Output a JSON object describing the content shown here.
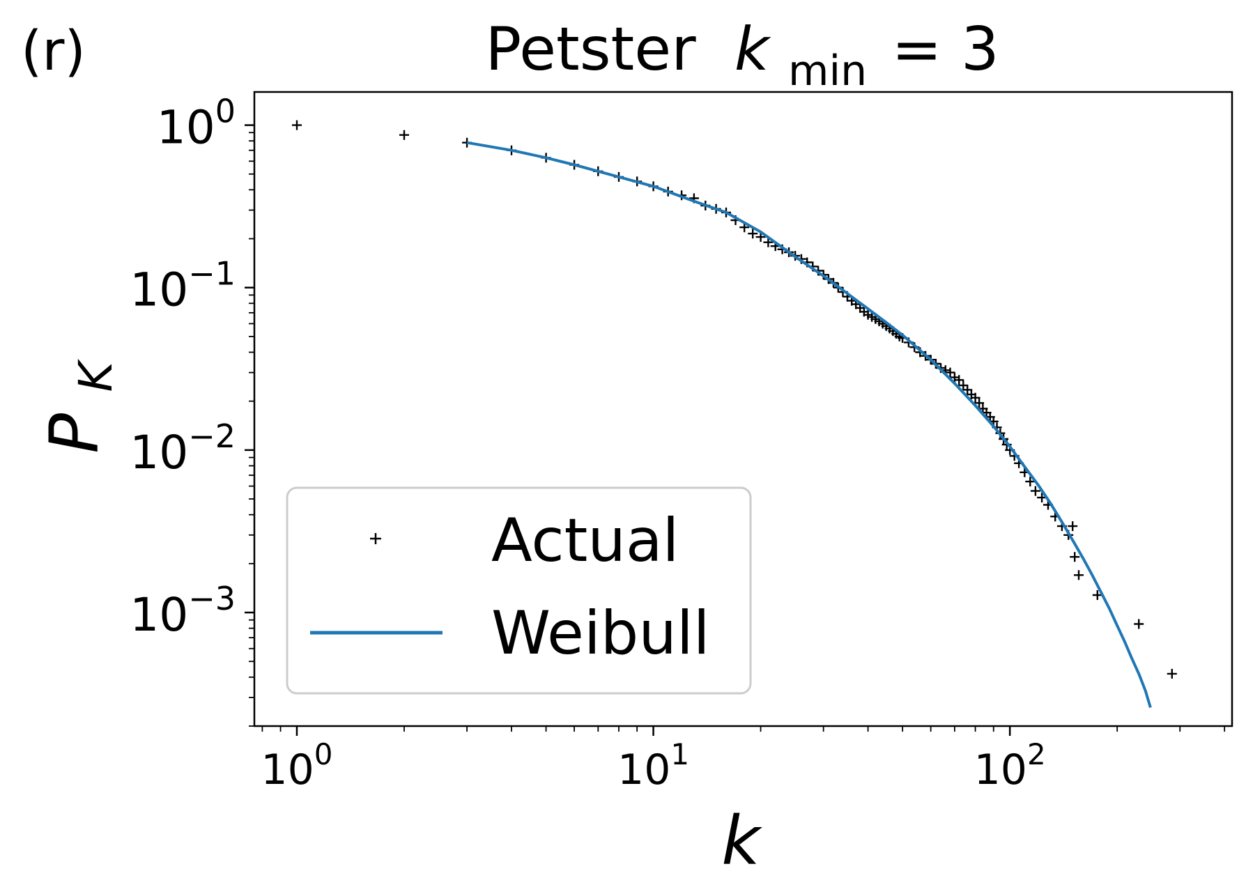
{
  "panel_label": "(r)",
  "chart_data": {
    "type": "scatter",
    "title": {
      "prefix": "Petster",
      "var": "k",
      "subscript": "min",
      "suffix": "= 3"
    },
    "xlabel": "k",
    "ylabel": {
      "base": "P",
      "sub": "K"
    },
    "xscale": "log",
    "yscale": "log",
    "xlim": [
      0.76,
      420
    ],
    "ylim": [
      0.0002,
      1.6
    ],
    "xticks": [
      {
        "value": 1,
        "base": "10",
        "exp": "0"
      },
      {
        "value": 10,
        "base": "10",
        "exp": "1"
      },
      {
        "value": 100,
        "base": "10",
        "exp": "2"
      }
    ],
    "yticks": [
      {
        "value": 1,
        "base": "10",
        "exp": "0"
      },
      {
        "value": 0.1,
        "base": "10",
        "exp": "−1"
      },
      {
        "value": 0.01,
        "base": "10",
        "exp": "−2"
      },
      {
        "value": 0.001,
        "base": "10",
        "exp": "−3"
      }
    ],
    "legend_position": "lower-left",
    "series": [
      {
        "name": "Actual",
        "kind": "markers",
        "color": "#000000",
        "marker": "plus",
        "x": [
          1,
          2,
          3,
          4,
          5,
          6,
          7,
          8,
          9,
          10,
          11,
          12,
          13,
          14,
          15,
          16,
          17,
          18,
          19,
          20,
          21,
          22,
          23,
          24,
          25,
          26,
          27,
          28,
          29,
          30,
          31,
          32,
          33,
          34,
          35,
          36,
          37,
          38,
          39,
          40,
          41,
          42,
          43,
          44,
          45,
          46,
          47,
          48,
          49,
          50,
          52,
          54,
          56,
          58,
          60,
          62,
          64,
          66,
          68,
          70,
          72,
          74,
          76,
          78,
          80,
          82,
          84,
          86,
          88,
          90,
          92,
          94,
          96,
          98,
          100,
          103,
          106,
          110,
          114,
          118,
          123,
          128,
          134,
          140,
          146,
          150,
          152,
          156,
          176,
          230,
          285
        ],
        "y": [
          1.0,
          0.87,
          0.78,
          0.7,
          0.63,
          0.57,
          0.52,
          0.48,
          0.45,
          0.42,
          0.39,
          0.37,
          0.355,
          0.32,
          0.305,
          0.29,
          0.26,
          0.235,
          0.215,
          0.205,
          0.19,
          0.18,
          0.172,
          0.165,
          0.157,
          0.15,
          0.143,
          0.135,
          0.127,
          0.12,
          0.113,
          0.107,
          0.1,
          0.094,
          0.088,
          0.083,
          0.079,
          0.075,
          0.071,
          0.068,
          0.066,
          0.064,
          0.062,
          0.06,
          0.058,
          0.056,
          0.054,
          0.052,
          0.05,
          0.049,
          0.046,
          0.043,
          0.04,
          0.038,
          0.036,
          0.034,
          0.032,
          0.031,
          0.03,
          0.028,
          0.027,
          0.025,
          0.0235,
          0.022,
          0.021,
          0.0195,
          0.018,
          0.017,
          0.016,
          0.015,
          0.0138,
          0.0127,
          0.0117,
          0.0108,
          0.01,
          0.0092,
          0.0083,
          0.0073,
          0.0064,
          0.0056,
          0.0051,
          0.0046,
          0.0039,
          0.0034,
          0.003,
          0.0034,
          0.0022,
          0.0017,
          0.00128,
          0.00085,
          0.00042
        ]
      },
      {
        "name": "Weibull",
        "kind": "line",
        "color": "#1f77b4",
        "x": [
          3,
          4,
          5,
          6,
          8,
          10,
          13,
          16,
          20,
          25,
          30,
          35,
          40,
          45,
          50,
          60,
          70,
          80,
          90,
          100,
          110,
          120,
          130,
          140,
          150,
          160,
          170,
          180,
          190,
          200,
          210,
          220,
          230,
          240,
          248
        ],
        "y": [
          0.78,
          0.7,
          0.63,
          0.57,
          0.48,
          0.42,
          0.34,
          0.29,
          0.22,
          0.155,
          0.118,
          0.092,
          0.074,
          0.061,
          0.051,
          0.036,
          0.0257,
          0.0188,
          0.014,
          0.0105,
          0.0079,
          0.0061,
          0.0047,
          0.0036,
          0.00279,
          0.00218,
          0.00171,
          0.00134,
          0.00106,
          0.00083,
          0.00066,
          0.00052,
          0.00042,
          0.00033,
          0.00026
        ]
      }
    ]
  }
}
